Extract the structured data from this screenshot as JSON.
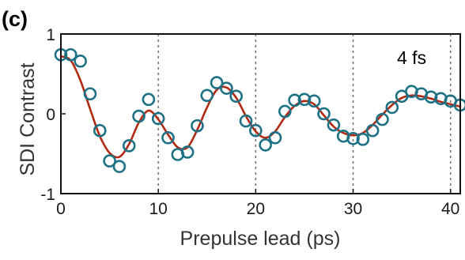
{
  "panel_label": "(c)",
  "chart_data": {
    "type": "scatter",
    "annotation": "4 fs",
    "xlabel": "Prepulse lead (ps)",
    "ylabel": "SDI Contrast",
    "xlim": [
      0,
      41
    ],
    "ylim": [
      -1,
      1
    ],
    "x_ticks": [
      0,
      10,
      20,
      30,
      40
    ],
    "x_tick_labels": [
      "0",
      "10",
      "20",
      "30",
      "40"
    ],
    "y_ticks": [
      -1,
      0,
      1
    ],
    "y_tick_labels": [
      "-1",
      "0",
      "1"
    ],
    "vertical_grid_x": [
      10,
      20,
      30,
      40
    ],
    "grid": "vertical dashed at major x ticks",
    "colors": {
      "markers": "#1d7185",
      "fit_line": "#b22a12"
    },
    "series": [
      {
        "kind": "markers",
        "x": [
          0,
          1,
          2,
          3,
          4,
          5,
          6,
          7,
          8,
          9,
          10,
          11,
          12,
          13,
          14,
          15,
          16,
          17,
          18,
          19,
          20,
          21,
          22,
          23,
          24,
          25,
          26,
          27,
          28,
          29,
          30,
          31,
          32,
          33,
          34,
          35,
          36,
          37,
          38,
          39,
          40,
          41
        ],
        "y": [
          0.74,
          0.74,
          0.66,
          0.25,
          -0.21,
          -0.59,
          -0.66,
          -0.4,
          -0.03,
          0.18,
          -0.06,
          -0.3,
          -0.51,
          -0.48,
          -0.15,
          0.23,
          0.39,
          0.32,
          0.22,
          -0.09,
          -0.21,
          -0.39,
          -0.3,
          0.03,
          0.17,
          0.18,
          0.16,
          0.0,
          -0.14,
          -0.28,
          -0.31,
          -0.32,
          -0.21,
          -0.07,
          0.08,
          0.22,
          0.28,
          0.25,
          0.21,
          0.19,
          0.16,
          0.11
        ]
      },
      {
        "kind": "line",
        "x": [
          0,
          1,
          2,
          3,
          4,
          5,
          6,
          7,
          8,
          9,
          10,
          11,
          12,
          13,
          14,
          15,
          16,
          17,
          18,
          19,
          20,
          21,
          22,
          23,
          24,
          25,
          26,
          27,
          28,
          29,
          30,
          31,
          32,
          33,
          34,
          35,
          36,
          37,
          38,
          39,
          40,
          41
        ],
        "y": [
          0.72,
          0.67,
          0.42,
          0.06,
          -0.28,
          -0.49,
          -0.54,
          -0.38,
          -0.11,
          0.04,
          -0.07,
          -0.26,
          -0.42,
          -0.42,
          -0.2,
          0.08,
          0.3,
          0.33,
          0.2,
          -0.03,
          -0.22,
          -0.3,
          -0.22,
          -0.04,
          0.1,
          0.16,
          0.12,
          -0.02,
          -0.16,
          -0.24,
          -0.27,
          -0.24,
          -0.14,
          -0.01,
          0.11,
          0.2,
          0.23,
          0.22,
          0.19,
          0.15,
          0.12,
          0.09
        ]
      }
    ]
  }
}
